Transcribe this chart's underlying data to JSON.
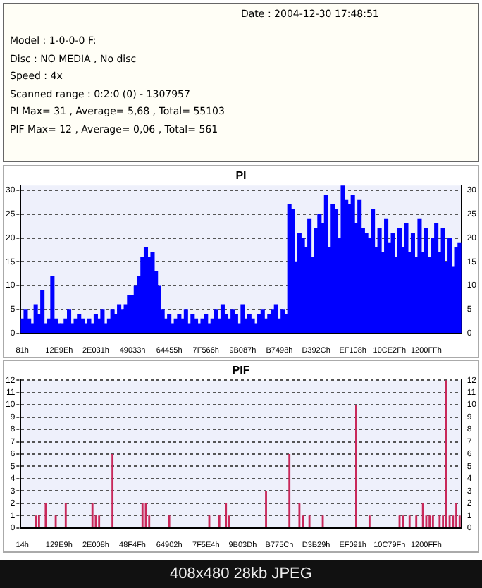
{
  "chart_data": [
    {
      "type": "other",
      "annotations": [
        "Date : 2004-12-30 17:48:51",
        "Model : 1-0-0-0 F:",
        "Disc : NO MEDIA , No disc",
        "Speed : 4x",
        "Scanned range : 0:2:0 (0) - 1307957",
        "PI Max= 31 , Average= 5,68 , Total= 55103",
        "PIF Max= 12 , Average= 0,06 , Total= 561"
      ]
    },
    {
      "type": "bar",
      "title": "PI",
      "color": "#0000ff",
      "grid": "y",
      "legend": false,
      "categories": [
        "81h",
        null,
        null,
        null,
        null,
        null,
        null,
        null,
        null,
        null,
        null,
        "12E9Eh",
        null,
        null,
        null,
        null,
        null,
        null,
        null,
        null,
        null,
        null,
        "2E031h",
        null,
        null,
        null,
        null,
        null,
        null,
        null,
        null,
        null,
        null,
        "49033h",
        null,
        null,
        null,
        null,
        null,
        null,
        null,
        null,
        null,
        null,
        "64455h",
        null,
        null,
        null,
        null,
        null,
        null,
        null,
        null,
        null,
        null,
        "7F566h",
        null,
        null,
        null,
        null,
        null,
        null,
        null,
        null,
        null,
        null,
        "9B087h",
        null,
        null,
        null,
        null,
        null,
        null,
        null,
        null,
        null,
        null,
        "B7498h",
        null,
        null,
        null,
        null,
        null,
        null,
        null,
        null,
        null,
        null,
        "D392Ch",
        null,
        null,
        null,
        null,
        null,
        null,
        null,
        null,
        null,
        null,
        "EF108h",
        null,
        null,
        null,
        null,
        null,
        null,
        null,
        null,
        null,
        null,
        "10CE2Fh",
        null,
        null,
        null,
        null,
        null,
        null,
        null,
        null,
        null,
        null,
        "1200FFh",
        null,
        null,
        null,
        null,
        null,
        null,
        null,
        null,
        null,
        null
      ],
      "values": [
        3,
        5,
        3,
        2,
        6,
        4,
        9,
        2,
        3,
        12,
        3,
        2,
        2,
        3,
        5,
        2,
        3,
        4,
        3,
        2,
        3,
        2,
        4,
        3,
        5,
        2,
        3,
        5,
        4,
        6,
        5,
        6,
        8,
        8,
        10,
        12,
        16,
        18,
        16,
        17,
        13,
        10,
        5,
        3,
        4,
        2,
        3,
        4,
        3,
        5,
        2,
        4,
        3,
        2,
        3,
        4,
        2,
        3,
        5,
        3,
        6,
        4,
        3,
        5,
        4,
        2,
        6,
        3,
        4,
        3,
        2,
        4,
        5,
        3,
        4,
        5,
        6,
        3,
        5,
        4,
        27,
        26,
        15,
        21,
        20,
        18,
        24,
        16,
        22,
        25,
        23,
        29,
        18,
        27,
        26,
        20,
        31,
        28,
        27,
        29,
        23,
        28,
        22,
        21,
        20,
        26,
        18,
        22,
        17,
        24,
        19,
        21,
        16,
        22,
        18,
        23,
        17,
        21,
        16,
        24,
        17,
        22,
        16,
        20,
        23,
        17,
        22,
        15,
        20,
        14,
        18,
        19
      ],
      "ylim": [
        0,
        31
      ],
      "yticks": [
        0,
        5,
        10,
        15,
        20,
        25,
        30
      ],
      "y2lim": [
        0,
        31
      ],
      "y2ticks": [
        0,
        5,
        10,
        15,
        20,
        25,
        30
      ]
    },
    {
      "type": "bar",
      "title": "PIF",
      "color": "#c8285a",
      "grid": "y",
      "legend": false,
      "categories": [
        "14h",
        null,
        null,
        null,
        null,
        null,
        null,
        null,
        null,
        null,
        null,
        "129E9h",
        null,
        null,
        null,
        null,
        null,
        null,
        null,
        null,
        null,
        null,
        "2E008h",
        null,
        null,
        null,
        null,
        null,
        null,
        null,
        null,
        null,
        null,
        "48F4Fh",
        null,
        null,
        null,
        null,
        null,
        null,
        null,
        null,
        null,
        null,
        "64902h",
        null,
        null,
        null,
        null,
        null,
        null,
        null,
        null,
        null,
        null,
        "7F5E4h",
        null,
        null,
        null,
        null,
        null,
        null,
        null,
        null,
        null,
        null,
        "9B03Dh",
        null,
        null,
        null,
        null,
        null,
        null,
        null,
        null,
        null,
        null,
        "B775Ch",
        null,
        null,
        null,
        null,
        null,
        null,
        null,
        null,
        null,
        null,
        "D3B29h",
        null,
        null,
        null,
        null,
        null,
        null,
        null,
        null,
        null,
        null,
        "EF091h",
        null,
        null,
        null,
        null,
        null,
        null,
        null,
        null,
        null,
        null,
        "10C79Fh",
        null,
        null,
        null,
        null,
        null,
        null,
        null,
        null,
        null,
        null,
        "1200FFh",
        null,
        null,
        null,
        null,
        null,
        null,
        null,
        null,
        null,
        null
      ],
      "values": [
        0,
        0,
        0,
        0,
        1,
        1,
        0,
        2,
        0,
        0,
        1,
        0,
        0,
        2,
        0,
        0,
        0,
        0,
        0,
        0,
        0,
        2,
        1,
        1,
        0,
        0,
        0,
        6,
        0,
        0,
        0,
        0,
        0,
        0,
        0,
        0,
        2,
        2,
        1,
        0,
        0,
        0,
        0,
        0,
        1,
        0,
        0,
        0,
        0,
        0,
        0,
        0,
        0,
        0,
        0,
        0,
        1,
        0,
        0,
        1,
        0,
        2,
        1,
        0,
        0,
        0,
        0,
        0,
        0,
        0,
        0,
        0,
        0,
        3,
        0,
        0,
        0,
        0,
        0,
        0,
        6,
        0,
        0,
        2,
        1,
        0,
        1,
        0,
        0,
        0,
        1,
        0,
        0,
        0,
        0,
        0,
        0,
        0,
        0,
        0,
        10,
        0,
        0,
        0,
        1,
        0,
        0,
        0,
        0,
        0,
        0,
        0,
        0,
        1,
        1,
        0,
        1,
        0,
        1,
        0,
        2,
        1,
        1,
        1,
        0,
        1,
        1,
        12,
        1,
        1,
        2,
        1
      ],
      "ylim": [
        0,
        12
      ],
      "yticks": [
        0,
        1,
        2,
        3,
        4,
        5,
        6,
        7,
        8,
        9,
        10,
        11,
        12
      ],
      "y2lim": [
        0,
        12
      ],
      "y2ticks": [
        0,
        1,
        2,
        3,
        4,
        5,
        6,
        7,
        8,
        9,
        10,
        11,
        12
      ],
      "annotations": [
        "408x480 28kb JPEG"
      ]
    }
  ]
}
